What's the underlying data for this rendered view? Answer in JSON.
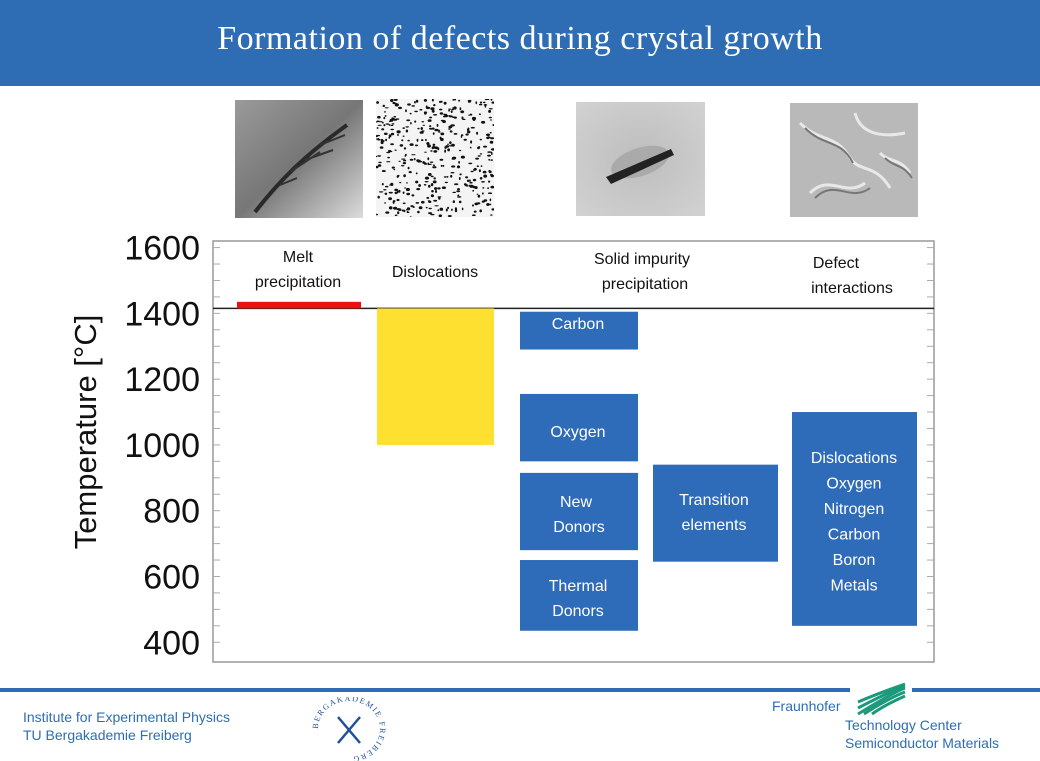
{
  "slide": {
    "title": "Formation of defects during crystal growth"
  },
  "photos": [
    {
      "name": "melt-precipitation-photo"
    },
    {
      "name": "dislocations-photo"
    },
    {
      "name": "solid-impurity-photo"
    },
    {
      "name": "defect-interactions-photo"
    }
  ],
  "chart_data": {
    "type": "bar",
    "ylabel": "Temperature [°C]",
    "ylim": [
      340,
      1620
    ],
    "yticks": [
      1600,
      1400,
      1200,
      1000,
      800,
      600,
      400
    ],
    "columns": [
      "Melt precipitation",
      "Dislocations",
      "Solid impurity precipitation",
      "Defect interactions"
    ],
    "melting_line": 1415,
    "bars": [
      {
        "label": "Melt precipitation",
        "column": 0,
        "from": 1415,
        "to": 1435,
        "color": "#ee1111"
      },
      {
        "label": "Dislocations",
        "column": 1,
        "from": 1000,
        "to": 1415,
        "color": "#fde030"
      },
      {
        "label": "Carbon",
        "column": 2,
        "from": 1290,
        "to": 1405,
        "color": "#2e6bb8"
      },
      {
        "label": "Oxygen",
        "column": 2,
        "from": 950,
        "to": 1155,
        "color": "#2e6bb8"
      },
      {
        "label": "New Donors",
        "column": 2,
        "from": 680,
        "to": 915,
        "color": "#2e6bb8"
      },
      {
        "label": "Thermal Donors",
        "column": 2,
        "from": 435,
        "to": 650,
        "color": "#2e6bb8"
      },
      {
        "label": "Transition elements",
        "column": 3,
        "from": 645,
        "to": 940,
        "color": "#2e6bb8"
      },
      {
        "label": "Dislocations Oxygen Nitrogen Carbon Boron Metals",
        "column": 4,
        "from": 450,
        "to": 1100,
        "color": "#2e6bb8"
      }
    ]
  },
  "chart_labels": {
    "melt": "Melt precipitation",
    "dislocations": "Dislocations",
    "solid_impurity": "Solid impurity precipitation",
    "defect_interactions": "Defect interactions",
    "carbon": "Carbon",
    "oxygen": "Oxygen",
    "new_donors": "New Donors",
    "thermal_donors": "Thermal Donors",
    "transition": "Transition elements",
    "interactions_list": [
      "Dislocations",
      "Oxygen",
      "Nitrogen",
      "Carbon",
      "Boron",
      "Metals"
    ]
  },
  "footer": {
    "institute": "Institute for Experimental Physics",
    "university": "TU Bergakademie Freiberg",
    "fraunhofer": "Fraunhofer",
    "tech_center": "Technology Center",
    "semiconductor": "Semiconductor Materials",
    "seal_text": "BERGAKADEMIE FREIBERG"
  },
  "colors": {
    "brand_blue": "#2e6db4",
    "bar_blue": "#2e6bb8",
    "melt_red": "#ee1111",
    "dislocation_yellow": "#fde030"
  }
}
